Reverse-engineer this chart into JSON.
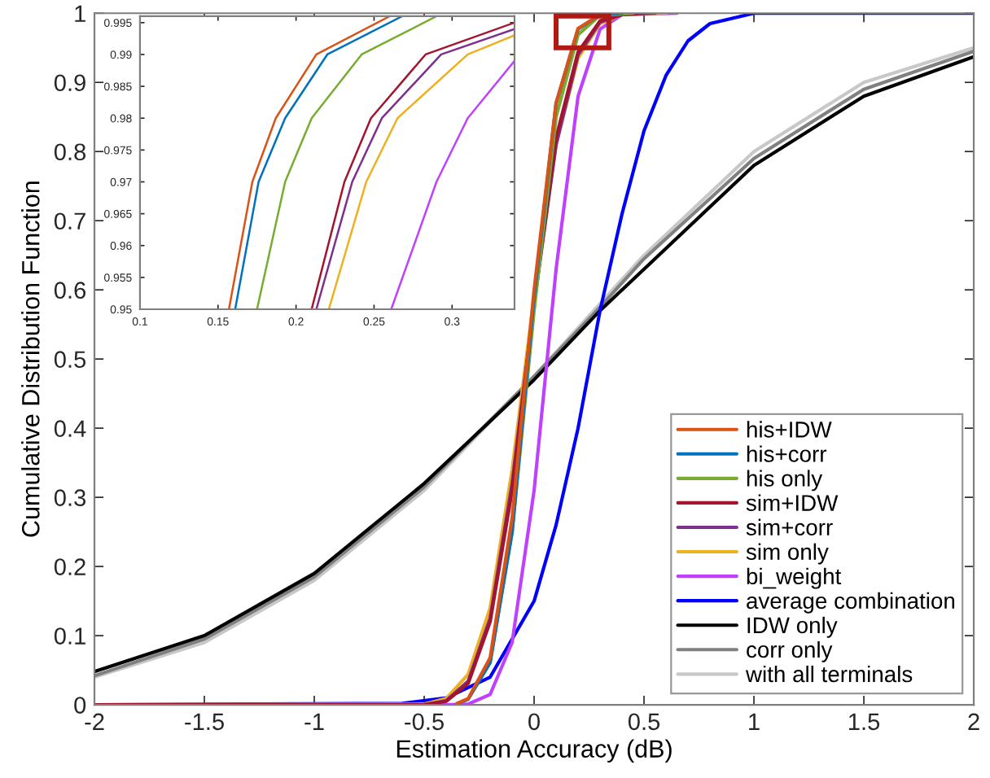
{
  "chart_data": [
    {
      "type": "line",
      "xlabel": "Estimation Accuracy (dB)",
      "ylabel": "Cumulative Distribution Function",
      "xlim": [
        -2,
        2
      ],
      "ylim": [
        0,
        1
      ],
      "xticks": [
        -2,
        -1.5,
        -1,
        -0.5,
        0,
        0.5,
        1,
        1.5,
        2
      ],
      "yticks": [
        0,
        0.1,
        0.2,
        0.3,
        0.4,
        0.5,
        0.6,
        0.7,
        0.8,
        0.9,
        1
      ],
      "grid": false,
      "legend": "bottom right",
      "line_style": "solid",
      "marker": "none",
      "series": [
        {
          "name": "his+IDW",
          "color": "#d95319",
          "x": [
            -0.35,
            -0.3,
            -0.2,
            -0.1,
            0,
            0.1,
            0.2,
            0.3,
            0.35
          ],
          "values": [
            0.002,
            0.009,
            0.068,
            0.27,
            0.6,
            0.87,
            0.978,
            0.998,
            1
          ]
        },
        {
          "name": "his+corr",
          "color": "#0072bd",
          "x": [
            -0.35,
            -0.3,
            -0.2,
            -0.1,
            0,
            0.1,
            0.2,
            0.3,
            0.4
          ],
          "values": [
            0.002,
            0.008,
            0.061,
            0.25,
            0.59,
            0.87,
            0.977,
            0.998,
            1
          ]
        },
        {
          "name": "his only",
          "color": "#77ac30",
          "x": [
            -0.2,
            -0.1,
            0,
            0.1,
            0.2,
            0.3,
            0.45
          ],
          "values": [
            0.063,
            0.25,
            0.57,
            0.85,
            0.969,
            0.997,
            1
          ]
        },
        {
          "name": "sim+IDW",
          "color": "#a2142f",
          "x": [
            -2,
            -0.5,
            -0.4,
            -0.3,
            -0.2,
            -0.1,
            0,
            0.1,
            0.2,
            0.3,
            0.4,
            0.5
          ],
          "values": [
            0,
            0,
            0.005,
            0.031,
            0.12,
            0.31,
            0.58,
            0.82,
            0.944,
            0.989,
            0.998,
            1
          ]
        },
        {
          "name": "sim+corr",
          "color": "#7e2f8e",
          "x": [
            -2,
            -0.5,
            -0.4,
            -0.3,
            -0.2,
            -0.1,
            0,
            0.1,
            0.2,
            0.3,
            0.4,
            0.55
          ],
          "values": [
            0,
            0,
            0.006,
            0.034,
            0.125,
            0.32,
            0.58,
            0.81,
            0.94,
            0.987,
            0.998,
            1
          ]
        },
        {
          "name": "sim only",
          "color": "#edb120",
          "x": [
            -2,
            -0.5,
            -0.4,
            -0.3,
            -0.2,
            -0.1,
            0,
            0.1,
            0.2,
            0.3,
            0.4,
            0.6
          ],
          "values": [
            0,
            0.001,
            0.009,
            0.044,
            0.14,
            0.34,
            0.59,
            0.81,
            0.935,
            0.985,
            0.998,
            1
          ]
        },
        {
          "name": "bi_weight",
          "color": "#bf40ff",
          "x": [
            -2,
            -0.4,
            -0.3,
            -0.2,
            -0.1,
            0,
            0.1,
            0.2,
            0.3,
            0.4,
            0.65
          ],
          "values": [
            0,
            0,
            0.001,
            0.015,
            0.09,
            0.31,
            0.63,
            0.88,
            0.977,
            0.998,
            1
          ]
        },
        {
          "name": "average combination",
          "color": "#0000ff",
          "x": [
            -2,
            -0.6,
            -0.4,
            -0.2,
            0,
            0.1,
            0.2,
            0.3,
            0.4,
            0.5,
            0.6,
            0.7,
            0.8,
            1,
            2
          ],
          "values": [
            0,
            0.002,
            0.01,
            0.04,
            0.15,
            0.26,
            0.4,
            0.57,
            0.71,
            0.83,
            0.91,
            0.96,
            0.985,
            1,
            1
          ]
        },
        {
          "name": "IDW only",
          "color": "#000000",
          "x": [
            -2,
            -1.5,
            -1,
            -0.5,
            0,
            0.3,
            0.5,
            1,
            1.5,
            2
          ],
          "values": [
            0.048,
            0.1,
            0.19,
            0.32,
            0.47,
            0.57,
            0.63,
            0.78,
            0.88,
            0.937
          ]
        },
        {
          "name": "corr only",
          "color": "#808080",
          "x": [
            -2,
            -1.5,
            -1,
            -0.5,
            0,
            0.3,
            0.5,
            1,
            1.5,
            2
          ],
          "values": [
            0.042,
            0.095,
            0.185,
            0.315,
            0.475,
            0.575,
            0.645,
            0.79,
            0.89,
            0.945
          ]
        },
        {
          "name": "with all terminals",
          "color": "#c8c8c8",
          "x": [
            -2,
            -1.5,
            -1,
            -0.5,
            0,
            0.3,
            0.5,
            1,
            1.5,
            2
          ],
          "values": [
            0.04,
            0.09,
            0.18,
            0.31,
            0.475,
            0.58,
            0.65,
            0.8,
            0.9,
            0.95
          ]
        }
      ]
    },
    {
      "type": "line",
      "xlim": [
        0.1,
        0.34
      ],
      "ylim": [
        0.95,
        0.996
      ],
      "xticks": [
        0.1,
        0.15,
        0.2,
        0.25,
        0.3
      ],
      "yticks": [
        0.95,
        0.955,
        0.96,
        0.965,
        0.97,
        0.975,
        0.98,
        0.985,
        0.99,
        0.995
      ],
      "grid": false,
      "line_style": "solid",
      "marker": "none",
      "series": [
        {
          "color": "#d95319",
          "x": [
            0.157,
            0.172,
            0.187,
            0.213,
            0.26
          ],
          "values": [
            0.95,
            0.97,
            0.98,
            0.99,
            0.996
          ]
        },
        {
          "color": "#0072bd",
          "x": [
            0.161,
            0.176,
            0.193,
            0.22,
            0.268
          ],
          "values": [
            0.95,
            0.97,
            0.98,
            0.99,
            0.996
          ]
        },
        {
          "color": "#77ac30",
          "x": [
            0.175,
            0.193,
            0.21,
            0.242,
            0.29
          ],
          "values": [
            0.95,
            0.97,
            0.98,
            0.99,
            0.996
          ]
        },
        {
          "color": "#a2142f",
          "x": [
            0.21,
            0.231,
            0.248,
            0.283,
            0.34
          ],
          "values": [
            0.95,
            0.97,
            0.98,
            0.99,
            0.995
          ]
        },
        {
          "color": "#7e2f8e",
          "x": [
            0.213,
            0.236,
            0.255,
            0.293,
            0.34
          ],
          "values": [
            0.95,
            0.97,
            0.98,
            0.99,
            0.994
          ]
        },
        {
          "color": "#edb120",
          "x": [
            0.221,
            0.245,
            0.265,
            0.31,
            0.34
          ],
          "values": [
            0.95,
            0.97,
            0.98,
            0.99,
            0.993
          ]
        },
        {
          "color": "#bf40ff",
          "x": [
            0.261,
            0.29,
            0.31,
            0.34
          ],
          "values": [
            0.95,
            0.97,
            0.98,
            0.989
          ]
        }
      ]
    }
  ]
}
